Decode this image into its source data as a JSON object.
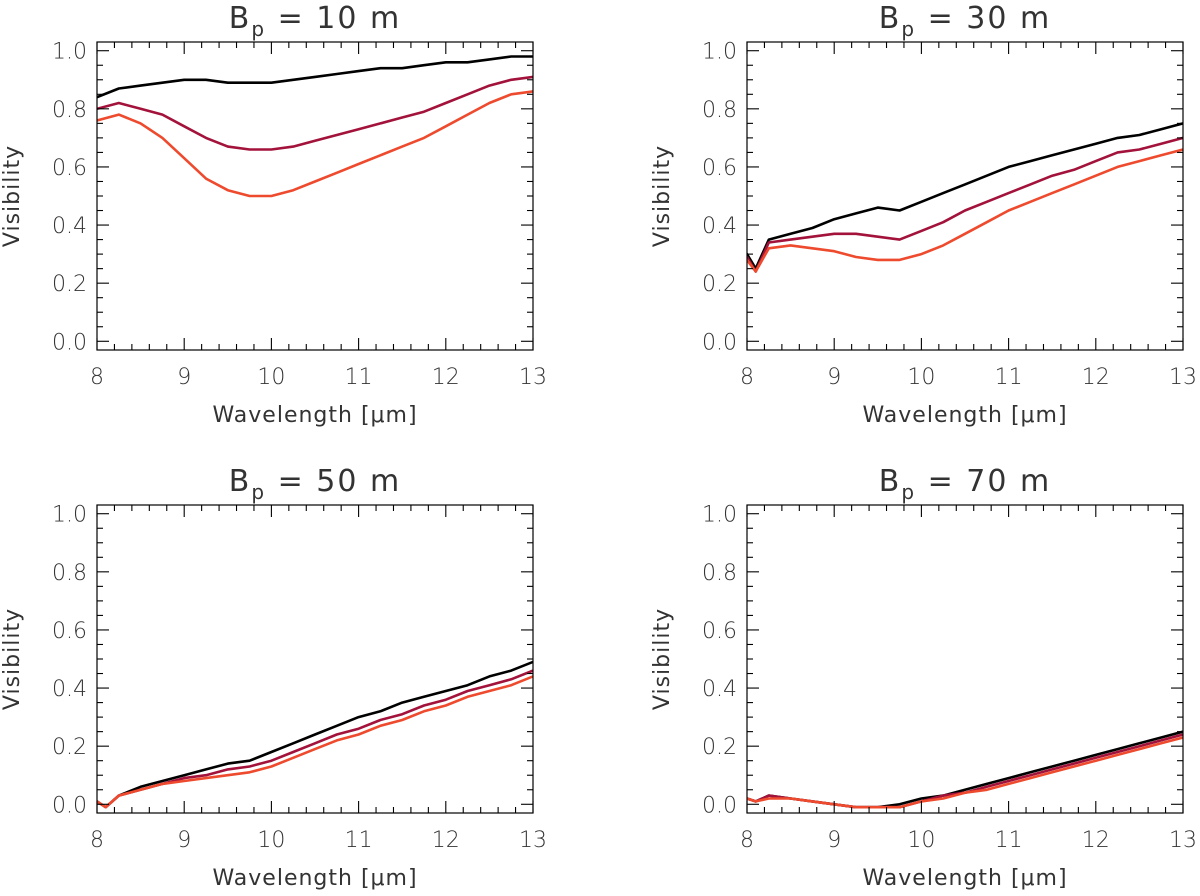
{
  "figure": {
    "x_axis_label": "Wavelength [μm]",
    "y_axis_label": "Visibility",
    "title_prefix": "B",
    "title_subscript": "p",
    "title_suffix": "m"
  },
  "colors": {
    "series_1": "#000000",
    "series_2": "#a3123a",
    "series_3": "#ee4a2e",
    "axes": "#000000",
    "text": "#333333"
  },
  "chart_data": [
    {
      "type": "line",
      "title": "B p = 10 m",
      "baseline_value": "10",
      "xlabel": "Wavelength [μm]",
      "ylabel": "Visibility",
      "xlim": [
        8,
        13
      ],
      "ylim": [
        0.0,
        1.0
      ],
      "x_ticks": [
        "8",
        "9",
        "10",
        "11",
        "12",
        "13"
      ],
      "y_ticks": [
        "0.0",
        "0.2",
        "0.4",
        "0.6",
        "0.8",
        "1.0"
      ],
      "x": [
        8.0,
        8.25,
        8.5,
        8.75,
        9.0,
        9.25,
        9.5,
        9.75,
        10.0,
        10.25,
        10.5,
        10.75,
        11.0,
        11.25,
        11.5,
        11.75,
        12.0,
        12.25,
        12.5,
        12.75,
        13.0
      ],
      "series": [
        {
          "name": "series-1",
          "values": [
            0.84,
            0.87,
            0.88,
            0.89,
            0.9,
            0.9,
            0.89,
            0.89,
            0.89,
            0.9,
            0.91,
            0.92,
            0.93,
            0.94,
            0.94,
            0.95,
            0.96,
            0.96,
            0.97,
            0.98,
            0.98
          ]
        },
        {
          "name": "series-2",
          "values": [
            0.8,
            0.82,
            0.8,
            0.78,
            0.74,
            0.7,
            0.67,
            0.66,
            0.66,
            0.67,
            0.69,
            0.71,
            0.73,
            0.75,
            0.77,
            0.79,
            0.82,
            0.85,
            0.88,
            0.9,
            0.91
          ]
        },
        {
          "name": "series-3",
          "values": [
            0.76,
            0.78,
            0.75,
            0.7,
            0.63,
            0.56,
            0.52,
            0.5,
            0.5,
            0.52,
            0.55,
            0.58,
            0.61,
            0.64,
            0.67,
            0.7,
            0.74,
            0.78,
            0.82,
            0.85,
            0.86
          ]
        }
      ]
    },
    {
      "type": "line",
      "title": "B p = 30 m",
      "baseline_value": "30",
      "xlabel": "Wavelength [μm]",
      "ylabel": "Visibility",
      "xlim": [
        8,
        13
      ],
      "ylim": [
        0.0,
        1.0
      ],
      "x_ticks": [
        "8",
        "9",
        "10",
        "11",
        "12",
        "13"
      ],
      "y_ticks": [
        "0.0",
        "0.2",
        "0.4",
        "0.6",
        "0.8",
        "1.0"
      ],
      "x": [
        8.0,
        8.1,
        8.25,
        8.5,
        8.75,
        9.0,
        9.25,
        9.5,
        9.75,
        10.0,
        10.25,
        10.5,
        10.75,
        11.0,
        11.25,
        11.5,
        11.75,
        12.0,
        12.25,
        12.5,
        12.75,
        13.0
      ],
      "series": [
        {
          "name": "series-1",
          "values": [
            0.3,
            0.25,
            0.35,
            0.37,
            0.39,
            0.42,
            0.44,
            0.46,
            0.45,
            0.48,
            0.51,
            0.54,
            0.57,
            0.6,
            0.62,
            0.64,
            0.66,
            0.68,
            0.7,
            0.71,
            0.73,
            0.75
          ]
        },
        {
          "name": "series-2",
          "values": [
            0.29,
            0.24,
            0.34,
            0.35,
            0.36,
            0.37,
            0.37,
            0.36,
            0.35,
            0.38,
            0.41,
            0.45,
            0.48,
            0.51,
            0.54,
            0.57,
            0.59,
            0.62,
            0.65,
            0.66,
            0.68,
            0.7
          ]
        },
        {
          "name": "series-3",
          "values": [
            0.28,
            0.24,
            0.32,
            0.33,
            0.32,
            0.31,
            0.29,
            0.28,
            0.28,
            0.3,
            0.33,
            0.37,
            0.41,
            0.45,
            0.48,
            0.51,
            0.54,
            0.57,
            0.6,
            0.62,
            0.64,
            0.66
          ]
        }
      ]
    },
    {
      "type": "line",
      "title": "B p = 50 m",
      "baseline_value": "50",
      "xlabel": "Wavelength [μm]",
      "ylabel": "Visibility",
      "xlim": [
        8,
        13
      ],
      "ylim": [
        0.0,
        1.0
      ],
      "x_ticks": [
        "8",
        "9",
        "10",
        "11",
        "12",
        "13"
      ],
      "y_ticks": [
        "0.0",
        "0.2",
        "0.4",
        "0.6",
        "0.8",
        "1.0"
      ],
      "x": [
        8.0,
        8.1,
        8.25,
        8.5,
        8.75,
        9.0,
        9.25,
        9.5,
        9.75,
        10.0,
        10.25,
        10.5,
        10.75,
        11.0,
        11.25,
        11.5,
        11.75,
        12.0,
        12.25,
        12.5,
        12.75,
        13.0
      ],
      "series": [
        {
          "name": "series-1",
          "values": [
            0.01,
            -0.01,
            0.03,
            0.06,
            0.08,
            0.1,
            0.12,
            0.14,
            0.15,
            0.18,
            0.21,
            0.24,
            0.27,
            0.3,
            0.32,
            0.35,
            0.37,
            0.39,
            0.41,
            0.44,
            0.46,
            0.49
          ]
        },
        {
          "name": "series-2",
          "values": [
            0.01,
            -0.01,
            0.03,
            0.05,
            0.07,
            0.09,
            0.1,
            0.12,
            0.13,
            0.15,
            0.18,
            0.21,
            0.24,
            0.26,
            0.29,
            0.31,
            0.34,
            0.36,
            0.39,
            0.41,
            0.43,
            0.46
          ]
        },
        {
          "name": "series-3",
          "values": [
            0.01,
            -0.01,
            0.03,
            0.05,
            0.07,
            0.08,
            0.09,
            0.1,
            0.11,
            0.13,
            0.16,
            0.19,
            0.22,
            0.24,
            0.27,
            0.29,
            0.32,
            0.34,
            0.37,
            0.39,
            0.41,
            0.44
          ]
        }
      ]
    },
    {
      "type": "line",
      "title": "B p = 70 m",
      "baseline_value": "70",
      "xlabel": "Wavelength [μm]",
      "ylabel": "Visibility",
      "xlim": [
        8,
        13
      ],
      "ylim": [
        0.0,
        1.0
      ],
      "x_ticks": [
        "8",
        "9",
        "10",
        "11",
        "12",
        "13"
      ],
      "y_ticks": [
        "0.0",
        "0.2",
        "0.4",
        "0.6",
        "0.8",
        "1.0"
      ],
      "x": [
        8.0,
        8.1,
        8.25,
        8.5,
        8.75,
        9.0,
        9.25,
        9.5,
        9.75,
        10.0,
        10.25,
        10.5,
        10.75,
        11.0,
        11.25,
        11.5,
        11.75,
        12.0,
        12.25,
        12.5,
        12.75,
        13.0
      ],
      "series": [
        {
          "name": "series-1",
          "values": [
            0.02,
            0.01,
            0.03,
            0.02,
            0.01,
            0.0,
            -0.01,
            -0.01,
            0.0,
            0.02,
            0.03,
            0.05,
            0.07,
            0.09,
            0.11,
            0.13,
            0.15,
            0.17,
            0.19,
            0.21,
            0.23,
            0.25
          ]
        },
        {
          "name": "series-2",
          "values": [
            0.02,
            0.01,
            0.03,
            0.02,
            0.01,
            0.0,
            -0.01,
            -0.01,
            -0.01,
            0.01,
            0.03,
            0.04,
            0.06,
            0.08,
            0.1,
            0.12,
            0.14,
            0.16,
            0.18,
            0.2,
            0.22,
            0.24
          ]
        },
        {
          "name": "series-3",
          "values": [
            0.02,
            0.01,
            0.02,
            0.02,
            0.01,
            0.0,
            -0.01,
            -0.01,
            -0.01,
            0.01,
            0.02,
            0.04,
            0.05,
            0.07,
            0.09,
            0.11,
            0.13,
            0.15,
            0.17,
            0.19,
            0.21,
            0.23
          ]
        }
      ]
    }
  ]
}
